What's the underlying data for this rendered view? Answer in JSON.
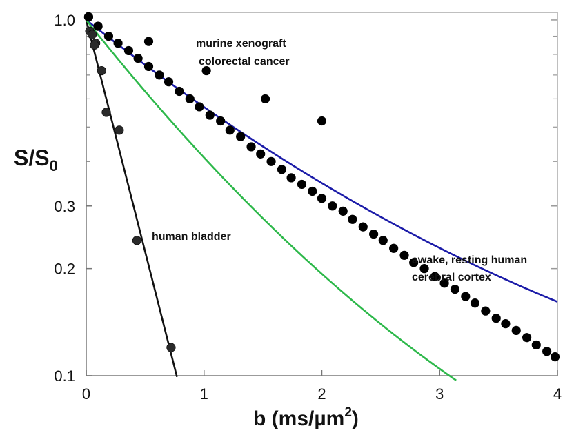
{
  "chart_data": {
    "type": "scatter",
    "title": "",
    "xlabel": "b  (ms/µm",
    "xlabel_sup": "2",
    "xlabel_close": ")",
    "ylabel_main": "S/S",
    "ylabel_sub": "0",
    "xlim": [
      0,
      4
    ],
    "ylim": [
      0.1,
      1.05
    ],
    "y_scale": "log",
    "x_ticks": [
      0,
      1,
      2,
      3,
      4
    ],
    "x_tick_labels": [
      "0",
      "1",
      "2",
      "3",
      "4"
    ],
    "y_ticks_major": [
      1.0,
      0.3,
      0.2,
      0.1
    ],
    "y_tick_labels": [
      "1.0",
      "0.3",
      "0.2",
      "0.1"
    ],
    "y_ticks_minor": [
      0.9,
      0.8,
      0.7,
      0.6,
      0.5,
      0.4
    ],
    "series": [
      {
        "name": "human bladder",
        "annotation": "human bladder",
        "line_color": "#111111",
        "marker_color": "#2a2a2a",
        "fit": {
          "model": "exp",
          "D": 3.0
        },
        "points": [
          [
            0.02,
            1.02
          ],
          [
            0.03,
            0.93
          ],
          [
            0.05,
            0.91
          ],
          [
            0.08,
            0.86
          ],
          [
            0.07,
            0.85
          ],
          [
            0.13,
            0.72
          ],
          [
            0.17,
            0.55
          ],
          [
            0.28,
            0.49
          ],
          [
            0.43,
            0.24
          ],
          [
            0.72,
            0.12
          ]
        ]
      },
      {
        "name": "murine xenograft colorectal cancer",
        "annotation": [
          "murine xenograft",
          "colorectal cancer"
        ],
        "line_color": "#1b1ba8",
        "marker_color": "#000000",
        "fit": {
          "model": "kurtosis",
          "D": 0.6,
          "K": 0.6
        },
        "points": [
          [
            0.02,
            1.02
          ],
          [
            0.1,
            0.96
          ],
          [
            0.53,
            0.87
          ],
          [
            1.02,
            0.72
          ],
          [
            1.52,
            0.6
          ],
          [
            2.0,
            0.52
          ]
        ]
      },
      {
        "name": "awake, resting human cerebral cortex",
        "annotation": [
          "awake, resting human",
          "cerebral cortex"
        ],
        "line_color": "#2db84a",
        "marker_color": "#000000",
        "fit": {
          "model": "kurtosis",
          "D": 0.96,
          "K": 0.45
        },
        "points": [
          [
            0.1,
            0.96
          ],
          [
            0.19,
            0.9
          ],
          [
            0.27,
            0.86
          ],
          [
            0.36,
            0.82
          ],
          [
            0.44,
            0.78
          ],
          [
            0.53,
            0.74
          ],
          [
            0.62,
            0.7
          ],
          [
            0.7,
            0.67
          ],
          [
            0.79,
            0.63
          ],
          [
            0.88,
            0.6
          ],
          [
            0.96,
            0.57
          ],
          [
            1.05,
            0.54
          ],
          [
            1.14,
            0.52
          ],
          [
            1.22,
            0.49
          ],
          [
            1.31,
            0.47
          ],
          [
            1.4,
            0.44
          ],
          [
            1.48,
            0.42
          ],
          [
            1.57,
            0.4
          ],
          [
            1.66,
            0.38
          ],
          [
            1.74,
            0.36
          ],
          [
            1.83,
            0.345
          ],
          [
            1.92,
            0.33
          ],
          [
            2.0,
            0.315
          ],
          [
            2.09,
            0.3
          ],
          [
            2.18,
            0.29
          ],
          [
            2.26,
            0.275
          ],
          [
            2.35,
            0.262
          ],
          [
            2.44,
            0.25
          ],
          [
            2.52,
            0.24
          ],
          [
            2.61,
            0.228
          ],
          [
            2.7,
            0.218
          ],
          [
            2.78,
            0.208
          ],
          [
            2.87,
            0.2
          ],
          [
            2.96,
            0.19
          ],
          [
            3.04,
            0.182
          ],
          [
            3.13,
            0.175
          ],
          [
            3.22,
            0.167
          ],
          [
            3.3,
            0.16
          ],
          [
            3.39,
            0.152
          ],
          [
            3.48,
            0.145
          ],
          [
            3.56,
            0.14
          ],
          [
            3.65,
            0.134
          ],
          [
            3.74,
            0.128
          ],
          [
            3.82,
            0.122
          ],
          [
            3.91,
            0.117
          ],
          [
            3.98,
            0.113
          ]
        ]
      }
    ]
  }
}
